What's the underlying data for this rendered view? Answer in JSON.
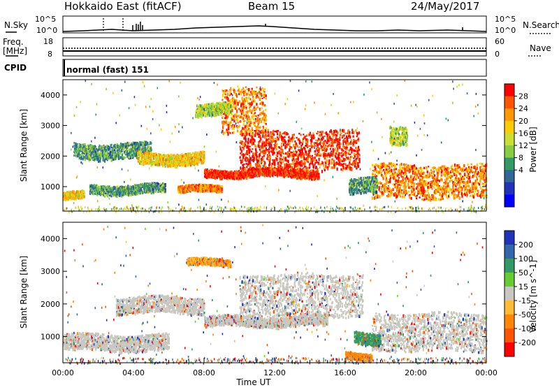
{
  "header": {
    "station": "Hokkaido East (fitACF)",
    "beam": "Beam 15",
    "date": "24/May/2017"
  },
  "strips": {
    "nsky": {
      "label": "N.Sky",
      "ticks": [
        "10^5",
        "10^0"
      ]
    },
    "nsearch": {
      "label": "N.Search",
      "ticks": [
        "10^5",
        "10^0"
      ]
    },
    "freq": {
      "label": "Freq.",
      "unit": "[MHz]",
      "ticks": [
        "18",
        "8"
      ]
    },
    "nave": {
      "label": "Nave",
      "ticks": [
        "60",
        "0"
      ]
    },
    "cpid": {
      "label": "CPID",
      "program": "normal (fast) 151"
    }
  },
  "chart_data": [
    {
      "type": "heatmap",
      "panel": "power",
      "ylabel": "Slant Range [km]",
      "yticks": [
        "1000",
        "2000",
        "3000",
        "4000"
      ],
      "ylim": [
        200,
        4500
      ],
      "x": [
        0,
        24
      ],
      "colorbar": {
        "label": "Power [dB]",
        "ticks": [
          "28",
          "24",
          "20",
          "16",
          "12",
          "8",
          "4"
        ],
        "colors": [
          "#ff0000",
          "#ff5500",
          "#ff9900",
          "#ffcc00",
          "#ccdd33",
          "#88cc44",
          "#339966",
          "#336699",
          "#2233bb",
          "#0000ff"
        ]
      },
      "echo_bands": [
        {
          "h0": 0.0,
          "h1": 1.2,
          "r0": 550,
          "r1": 800,
          "level": 20
        },
        {
          "h0": 1.5,
          "h1": 5.8,
          "r0": 750,
          "r1": 1050,
          "level": 12
        },
        {
          "h0": 0.6,
          "h1": 5.0,
          "r0": 1900,
          "r1": 2400,
          "level": 12
        },
        {
          "h0": 4.2,
          "h1": 8.0,
          "r0": 1700,
          "r1": 2100,
          "level": 20
        },
        {
          "h0": 6.5,
          "h1": 9.0,
          "r0": 800,
          "r1": 1000,
          "level": 24
        },
        {
          "h0": 8.0,
          "h1": 14.5,
          "r0": 1300,
          "r1": 1550,
          "level": 28
        },
        {
          "h0": 10.0,
          "h1": 16.8,
          "r0": 1500,
          "r1": 2800,
          "level": 28
        },
        {
          "h0": 9.0,
          "h1": 11.5,
          "r0": 2700,
          "r1": 4200,
          "level": 24
        },
        {
          "h0": 7.5,
          "h1": 9.5,
          "r0": 3300,
          "r1": 3700,
          "level": 16
        },
        {
          "h0": 17.5,
          "h1": 24.0,
          "r0": 600,
          "r1": 1700,
          "level": 24
        },
        {
          "h0": 16.2,
          "h1": 17.8,
          "r0": 750,
          "r1": 1250,
          "level": 12
        },
        {
          "h0": 18.5,
          "h1": 19.5,
          "r0": 2400,
          "r1": 3000,
          "level": 16
        }
      ]
    },
    {
      "type": "heatmap",
      "panel": "velocity",
      "xlabel": "Time UT",
      "ylabel": "Slant Range [km]",
      "xticks": [
        "00:00",
        "04:00",
        "08:00",
        "12:00",
        "16:00",
        "20:00",
        "00:00"
      ],
      "yticks": [
        "1000",
        "2000",
        "3000",
        "4000"
      ],
      "ylim": [
        200,
        4500
      ],
      "x": [
        0,
        24
      ],
      "colorbar": {
        "label": "Velocity [m s^-1]",
        "ticks": [
          "200",
          "100",
          "50",
          "15",
          "-15",
          "-50",
          "-100",
          "-200"
        ],
        "colors": [
          "#2233bb",
          "#3366aa",
          "#339966",
          "#66cc33",
          "#c8c8c0",
          "#ffbb33",
          "#ff8800",
          "#ff5500",
          "#ff0000"
        ]
      },
      "echo_bands": [
        {
          "h0": 0.0,
          "h1": 6.0,
          "r0": 550,
          "r1": 1050,
          "level": 0
        },
        {
          "h0": 3.0,
          "h1": 8.0,
          "r0": 1700,
          "r1": 2200,
          "level": 0
        },
        {
          "h0": 8.0,
          "h1": 15.0,
          "r0": 1300,
          "r1": 1600,
          "level": 0
        },
        {
          "h0": 10.0,
          "h1": 17.0,
          "r0": 1600,
          "r1": 2900,
          "level": 0
        },
        {
          "h0": 7.0,
          "h1": 9.5,
          "r0": 3150,
          "r1": 3350,
          "level": -30
        },
        {
          "h0": 17.5,
          "h1": 24.0,
          "r0": 550,
          "r1": 1700,
          "level": 0
        },
        {
          "h0": 16.5,
          "h1": 18.0,
          "r0": 750,
          "r1": 1100,
          "level": 40
        },
        {
          "h0": 16.0,
          "h1": 17.5,
          "r0": 300,
          "r1": 500,
          "level": -40
        }
      ]
    }
  ]
}
